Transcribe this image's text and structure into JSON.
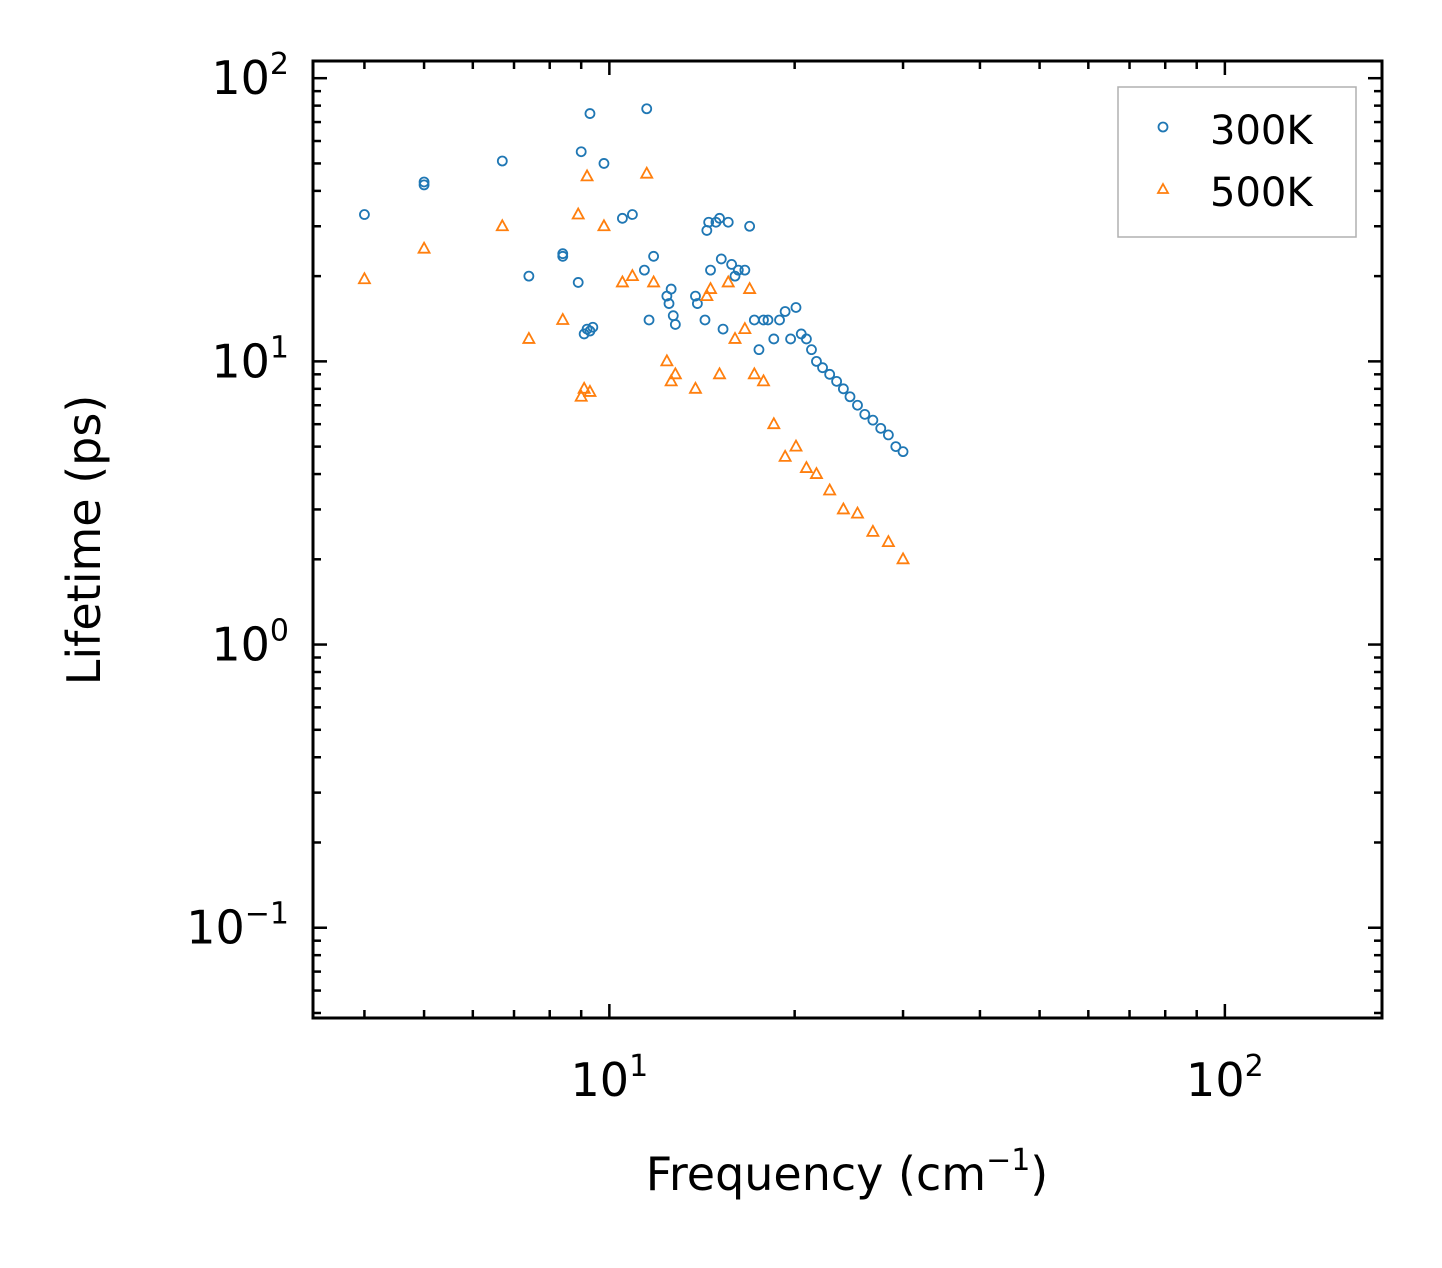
{
  "chart_data": {
    "type": "scatter",
    "title": "",
    "xlabel": {
      "text": "Frequency (cm",
      "sup": "−1",
      "suffix": ")"
    },
    "ylabel": "Lifetime (ps)",
    "xscale": "log",
    "yscale": "log",
    "xlim": [
      3.3,
      180
    ],
    "ylim": [
      0.048,
      115
    ],
    "grid": false,
    "legend_position": "top-right",
    "x_ticks": [
      {
        "value": 10,
        "base": "10",
        "exp": "1"
      },
      {
        "value": 100,
        "base": "10",
        "exp": "2"
      }
    ],
    "y_ticks": [
      {
        "value": 0.1,
        "base": "10",
        "exp": "−1"
      },
      {
        "value": 1,
        "base": "10",
        "exp": "0"
      },
      {
        "value": 10,
        "base": "10",
        "exp": "1"
      },
      {
        "value": 100,
        "base": "10",
        "exp": "2"
      }
    ],
    "series": [
      {
        "name": "300K",
        "marker": "circle",
        "color": "#1f77b4",
        "x": [
          4.0,
          5.0,
          5.0,
          6.7,
          7.4,
          8.4,
          8.4,
          8.9,
          9.0,
          9.1,
          9.2,
          9.3,
          9.3,
          9.4,
          9.8,
          10.5,
          10.9,
          11.4,
          11.5,
          11.6,
          11.8,
          12.4,
          12.5,
          12.6,
          12.7,
          12.8,
          13.8,
          13.9,
          14.3,
          14.4,
          14.5,
          14.6,
          14.9,
          15.1,
          15.2,
          15.3,
          15.6,
          15.8,
          16.0,
          16.2,
          16.6,
          16.9,
          17.2,
          17.5,
          17.8,
          18.1,
          18.5,
          18.9,
          19.3,
          19.7,
          20.1,
          20.5,
          20.9,
          21.3,
          21.7,
          22.2,
          22.8,
          23.4,
          24.0,
          24.6,
          25.3,
          26.0,
          26.8,
          27.6,
          28.4,
          29.2,
          30.0
        ],
        "y": [
          33,
          42,
          43,
          51,
          20,
          23.5,
          24,
          19,
          55,
          12.5,
          13,
          75,
          12.8,
          13.2,
          50,
          32,
          33,
          21,
          78,
          14,
          23.5,
          17,
          16,
          18,
          14.5,
          13.5,
          17,
          16,
          14,
          29,
          31,
          21,
          31,
          32,
          23,
          13,
          31,
          22,
          20,
          21,
          21,
          30,
          14,
          11,
          14,
          14,
          12,
          14,
          15,
          12,
          15.5,
          12.5,
          12,
          11,
          10,
          9.5,
          9,
          8.5,
          8,
          7.5,
          7,
          6.5,
          6.2,
          5.8,
          5.5,
          5,
          4.8
        ]
      },
      {
        "name": "500K",
        "marker": "triangle",
        "color": "#ff7f0e",
        "x": [
          4.0,
          5.0,
          6.7,
          7.4,
          8.4,
          8.9,
          9.0,
          9.1,
          9.2,
          9.3,
          9.8,
          10.5,
          10.9,
          11.5,
          11.8,
          12.4,
          12.6,
          12.8,
          13.8,
          14.4,
          14.6,
          15.1,
          15.6,
          16.0,
          16.6,
          16.9,
          17.2,
          17.8,
          18.5,
          19.3,
          20.1,
          20.9,
          21.7,
          22.8,
          24.0,
          25.3,
          26.8,
          28.4,
          30.0
        ],
        "y": [
          19.5,
          25,
          30,
          12,
          14,
          33,
          7.5,
          8,
          45,
          7.8,
          30,
          19,
          20,
          46,
          19,
          10,
          8.5,
          9,
          8,
          17,
          18,
          9,
          19,
          12,
          13,
          18,
          9,
          8.5,
          6,
          4.6,
          5,
          4.2,
          4,
          3.5,
          3,
          2.9,
          2.5,
          2.3,
          2.0
        ]
      }
    ]
  }
}
